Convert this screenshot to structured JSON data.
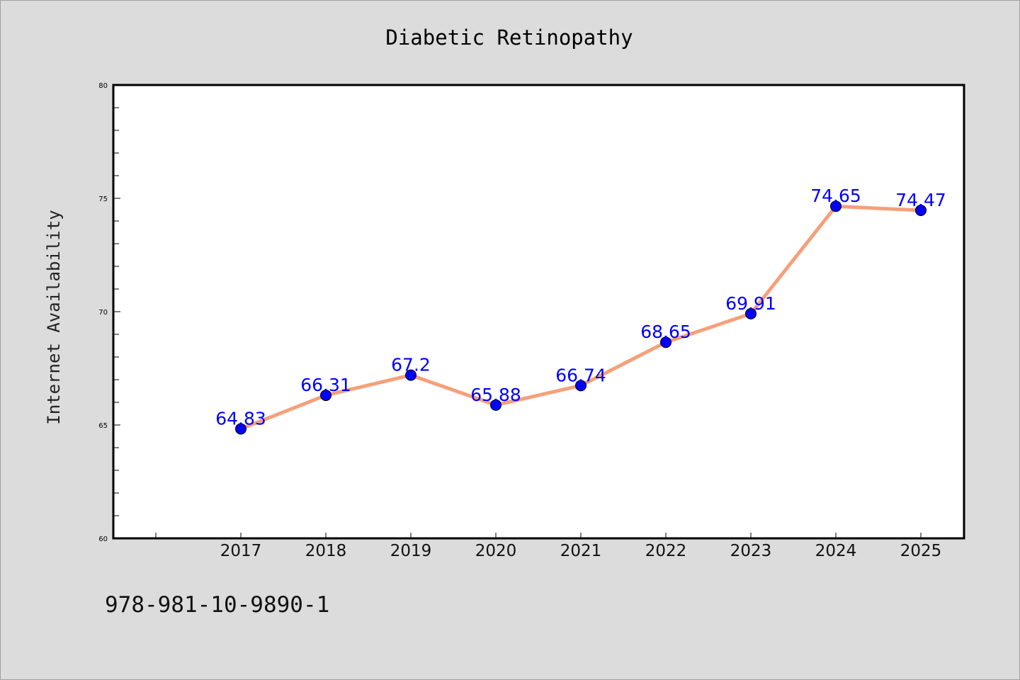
{
  "chart_data": {
    "type": "line",
    "title": "Diabetic Retinopathy",
    "ylabel": "Internet Availability",
    "xlabel": "",
    "categories": [
      "2017",
      "2018",
      "2019",
      "2020",
      "2021",
      "2022",
      "2023",
      "2024",
      "2025"
    ],
    "series": [
      {
        "values": [
          64.83,
          66.31,
          67.2,
          65.88,
          66.74,
          68.65,
          69.91,
          74.65,
          74.47
        ]
      }
    ],
    "data_labels": [
      "64.83",
      "66.31",
      "67.2",
      "65.88",
      "66.74",
      "68.65",
      "69.91",
      "74.65",
      "74.47"
    ],
    "ylim": [
      60,
      80
    ],
    "yticks": [
      "60",
      "65",
      "70",
      "75",
      "80"
    ],
    "grid": false,
    "colors": {
      "line": "#f4a07a",
      "marker": "#0000ff",
      "label": "#0000ff",
      "background": "#dcdcdc",
      "plot_background": "#ffffff"
    }
  },
  "footer": {
    "text": "978-981-10-9890-1"
  }
}
